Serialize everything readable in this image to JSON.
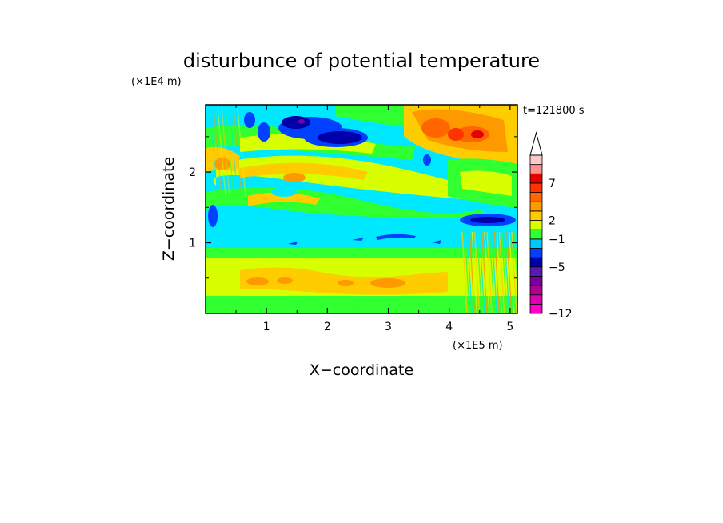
{
  "chart_data": {
    "type": "heatmap",
    "title": "disturbunce of potential temperature",
    "time_label": "t=121800 s",
    "xlabel": "X−coordinate",
    "ylabel": "Z−coordinate",
    "x_scale_label": "(×1E5 m)",
    "y_scale_label": "(×1E4 m)",
    "xlim": [
      0,
      5.12
    ],
    "ylim": [
      0,
      2.95
    ],
    "x_ticks": [
      {
        "value": 1,
        "label": "1"
      },
      {
        "value": 2,
        "label": "2"
      },
      {
        "value": 3,
        "label": "3"
      },
      {
        "value": 4,
        "label": "4"
      },
      {
        "value": 5,
        "label": "5"
      }
    ],
    "y_ticks": [
      {
        "value": 1,
        "label": "1"
      },
      {
        "value": 2,
        "label": "2"
      }
    ],
    "colorbar": {
      "extend_top": true,
      "level_colors": [
        "#ff00cc",
        "#e000b0",
        "#b00090",
        "#7b00a0",
        "#5a1ab0",
        "#0000aa",
        "#0040ff",
        "#00c8ff",
        "#30ff30",
        "#d8ff00",
        "#ffcc00",
        "#ff9900",
        "#ff6600",
        "#ff3300",
        "#e60000",
        "#ff9090",
        "#ffc8c8"
      ],
      "labels": [
        {
          "index": 0,
          "label": "−12"
        },
        {
          "index": 5,
          "label": "−5"
        },
        {
          "index": 8,
          "label": "−1"
        },
        {
          "index": 10,
          "label": "2"
        },
        {
          "index": 14,
          "label": "7"
        }
      ]
    },
    "field_features": [
      {
        "type": "band",
        "z_range": [
          0.8,
          1.4
        ],
        "value": -1.5,
        "description": "cyan layer"
      },
      {
        "type": "band",
        "z_range": [
          0.0,
          0.8
        ],
        "value": 2,
        "description": "warm layer near ground"
      },
      {
        "type": "blob",
        "x": 1.4,
        "z": 2.8,
        "value": -6
      },
      {
        "type": "blob",
        "x": 2.2,
        "z": 2.5,
        "value": -5
      },
      {
        "type": "blob",
        "x": 4.1,
        "z": 2.6,
        "value": 7
      },
      {
        "type": "blob",
        "x": 4.5,
        "z": 2.6,
        "value": 8
      },
      {
        "type": "blob",
        "x": 4.4,
        "z": 1.3,
        "value": -4
      }
    ]
  }
}
